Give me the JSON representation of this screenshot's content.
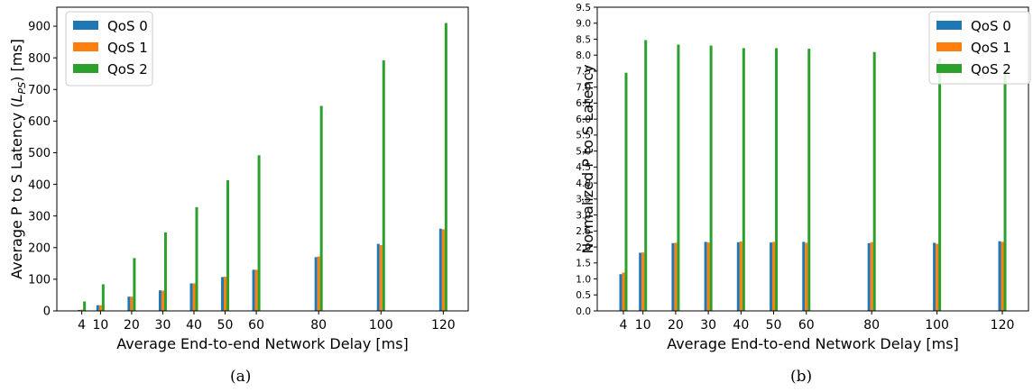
{
  "chart_data": [
    {
      "type": "bar",
      "categories": [
        "4",
        "10",
        "20",
        "30",
        "40",
        "50",
        "60",
        "80",
        "100",
        "120"
      ],
      "x": [
        4,
        10,
        20,
        30,
        40,
        50,
        60,
        80,
        100,
        120
      ],
      "series": [
        {
          "name": "QoS 0",
          "color": "#1f77b4",
          "values": [
            3,
            18,
            45,
            65,
            87,
            107,
            130,
            170,
            212,
            260
          ]
        },
        {
          "name": "QoS 1",
          "color": "#ff7f0e",
          "values": [
            4,
            18,
            45,
            64,
            87,
            108,
            130,
            172,
            208,
            258
          ]
        },
        {
          "name": "QoS 2",
          "color": "#2ca02c",
          "values": [
            30,
            84,
            167,
            248,
            328,
            413,
            492,
            648,
            792,
            910
          ]
        }
      ],
      "xlabel": "Average End-to-end Network Delay [ms]",
      "ylabel_parts": [
        "Average P to S Latency (",
        "L",
        "PS",
        ") [ms]"
      ],
      "yticks": [
        0,
        100,
        200,
        300,
        400,
        500,
        600,
        700,
        800,
        900
      ],
      "ylim": [
        0,
        960
      ],
      "xlim": [
        -4,
        128
      ],
      "legend": "top-left",
      "caption": "(a)"
    },
    {
      "type": "bar",
      "categories": [
        "4",
        "10",
        "20",
        "30",
        "40",
        "50",
        "60",
        "80",
        "100",
        "120"
      ],
      "x": [
        4,
        10,
        20,
        30,
        40,
        50,
        60,
        80,
        100,
        120
      ],
      "series": [
        {
          "name": "QoS 0",
          "color": "#1f77b4",
          "values": [
            1.15,
            1.82,
            2.12,
            2.16,
            2.15,
            2.14,
            2.16,
            2.12,
            2.13,
            2.18
          ]
        },
        {
          "name": "QoS 1",
          "color": "#ff7f0e",
          "values": [
            1.2,
            1.83,
            2.13,
            2.14,
            2.17,
            2.16,
            2.13,
            2.15,
            2.1,
            2.16
          ]
        },
        {
          "name": "QoS 2",
          "color": "#2ca02c",
          "values": [
            7.45,
            8.47,
            8.33,
            8.3,
            8.22,
            8.22,
            8.2,
            8.1,
            7.9,
            7.6
          ]
        }
      ],
      "xlabel": "Average End-to-end Network Delay [ms]",
      "ylabel": "Normalized P to S Latency",
      "yticks": [
        "0.0",
        "0.5",
        "1.0",
        "1.5",
        "2.0",
        "2.5",
        "3.0",
        "3.5",
        "4.0",
        "4.5",
        "5.0",
        "5.5",
        "6.0",
        "6.5",
        "7.0",
        "7.5",
        "8.0",
        "8.5",
        "9.0",
        "9.5"
      ],
      "ylim": [
        0,
        9.5
      ],
      "xlim": [
        -4,
        128
      ],
      "legend": "top-right",
      "caption": "(b)"
    }
  ]
}
